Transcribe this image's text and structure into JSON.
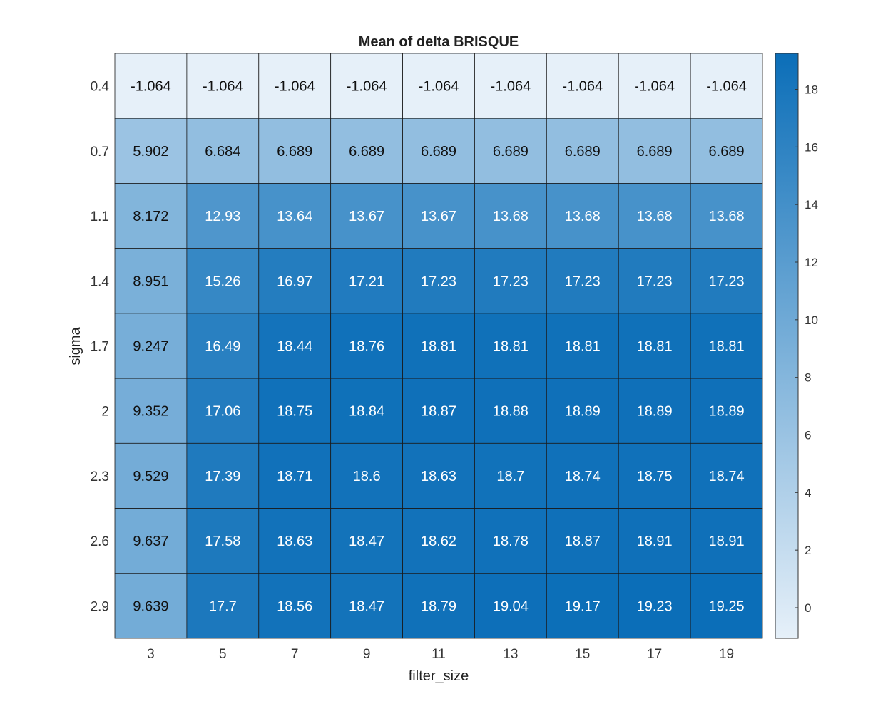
{
  "chart_data": {
    "type": "heatmap",
    "title": "Mean of delta BRISQUE",
    "xlabel": "filter_size",
    "ylabel": "sigma",
    "x_categories": [
      "3",
      "5",
      "7",
      "9",
      "11",
      "13",
      "15",
      "17",
      "19"
    ],
    "y_categories": [
      "0.4",
      "0.7",
      "1.1",
      "1.4",
      "1.7",
      "2",
      "2.3",
      "2.6",
      "2.9"
    ],
    "values": [
      [
        "-1.064",
        "-1.064",
        "-1.064",
        "-1.064",
        "-1.064",
        "-1.064",
        "-1.064",
        "-1.064",
        "-1.064"
      ],
      [
        "5.902",
        "6.684",
        "6.689",
        "6.689",
        "6.689",
        "6.689",
        "6.689",
        "6.689",
        "6.689"
      ],
      [
        "8.172",
        "12.93",
        "13.64",
        "13.67",
        "13.67",
        "13.68",
        "13.68",
        "13.68",
        "13.68"
      ],
      [
        "8.951",
        "15.26",
        "16.97",
        "17.21",
        "17.23",
        "17.23",
        "17.23",
        "17.23",
        "17.23"
      ],
      [
        "9.247",
        "16.49",
        "18.44",
        "18.76",
        "18.81",
        "18.81",
        "18.81",
        "18.81",
        "18.81"
      ],
      [
        "9.352",
        "17.06",
        "18.75",
        "18.84",
        "18.87",
        "18.88",
        "18.89",
        "18.89",
        "18.89"
      ],
      [
        "9.529",
        "17.39",
        "18.71",
        "18.6",
        "18.63",
        "18.7",
        "18.74",
        "18.75",
        "18.74"
      ],
      [
        "9.637",
        "17.58",
        "18.63",
        "18.47",
        "18.62",
        "18.78",
        "18.87",
        "18.91",
        "18.91"
      ],
      [
        "9.639",
        "17.7",
        "18.56",
        "18.47",
        "18.79",
        "19.04",
        "19.17",
        "19.23",
        "19.25"
      ]
    ],
    "colorbar": {
      "range": [
        -1.064,
        19.25
      ],
      "ticks": [
        "0",
        "2",
        "4",
        "6",
        "8",
        "10",
        "12",
        "14",
        "16",
        "18"
      ],
      "color_low": "#e6f0f9",
      "color_high": "#0b6eb8"
    },
    "grid": true,
    "legend": "colorbar-right"
  }
}
